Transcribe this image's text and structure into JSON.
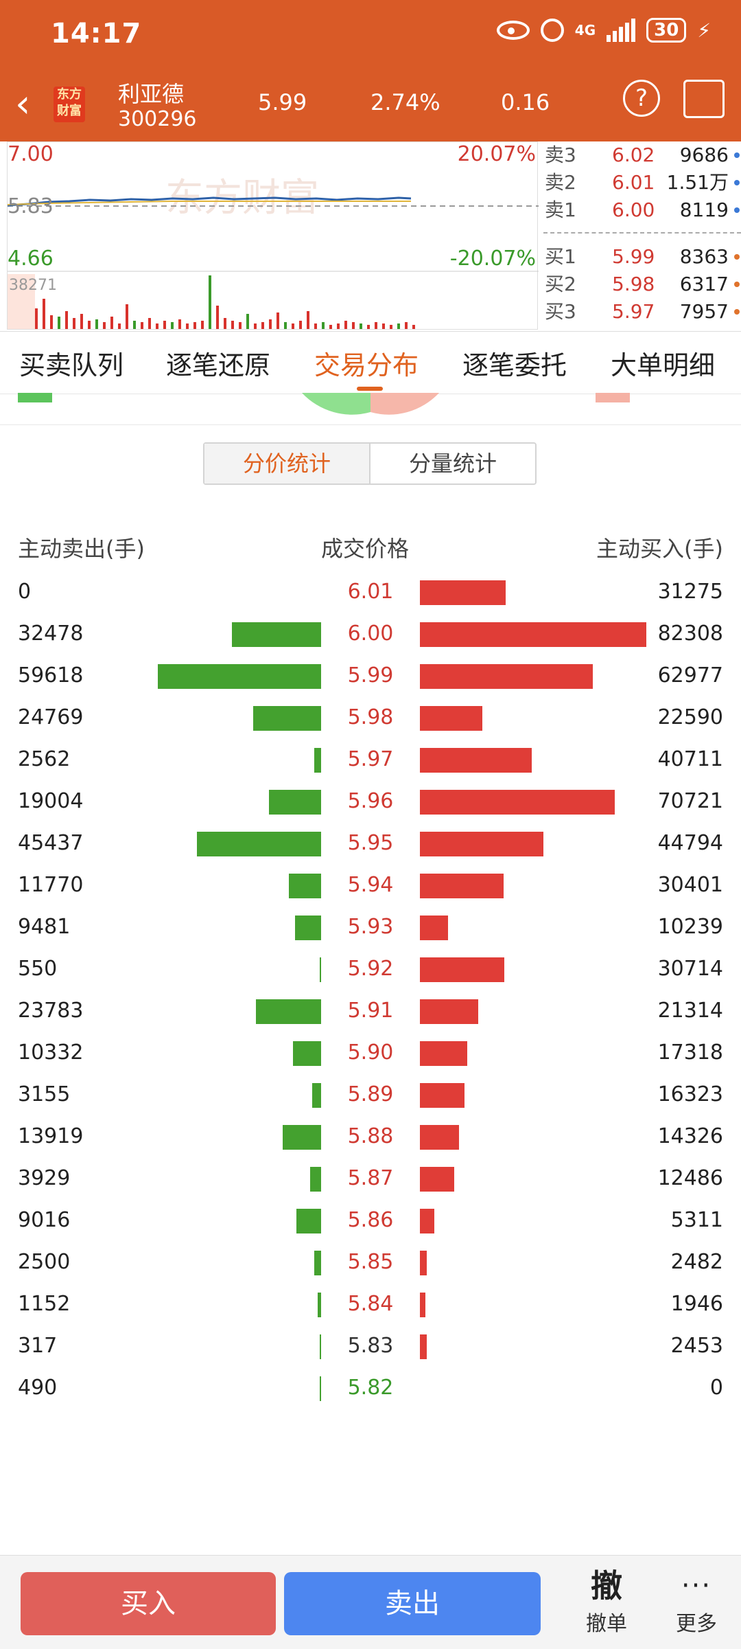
{
  "status": {
    "time": "14:17",
    "network": "4G",
    "battery": "30"
  },
  "stock": {
    "name": "利亚德",
    "code": "300296",
    "price": "5.99",
    "change_pct": "2.74%",
    "change": "0.16"
  },
  "mini_chart": {
    "high": "7.00",
    "high_pct": "20.07%",
    "mid": "5.83",
    "low": "4.66",
    "low_pct": "-20.07%",
    "vol_max": "38271",
    "watermark": "东方财富"
  },
  "orderbook": {
    "asks": [
      {
        "label": "卖3",
        "price": "6.02",
        "volume": "9686"
      },
      {
        "label": "卖2",
        "price": "6.01",
        "volume": "1.51万"
      },
      {
        "label": "卖1",
        "price": "6.00",
        "volume": "8119"
      }
    ],
    "bids": [
      {
        "label": "买1",
        "price": "5.99",
        "volume": "8363"
      },
      {
        "label": "买2",
        "price": "5.98",
        "volume": "6317"
      },
      {
        "label": "买3",
        "price": "5.97",
        "volume": "7957"
      }
    ]
  },
  "tabs": [
    "买卖队列",
    "逐笔还原",
    "交易分布",
    "逐笔委托",
    "大单明细"
  ],
  "active_tab": "交易分布",
  "segment": {
    "left": "分价统计",
    "right": "分量统计"
  },
  "table": {
    "col_sell": "主动卖出(手)",
    "col_price": "成交价格",
    "col_buy": "主动买入(手)",
    "rows": [
      {
        "sell": "0",
        "price": "6.01",
        "buy": "31275",
        "price_color": "#d03a32"
      },
      {
        "sell": "32478",
        "price": "6.00",
        "buy": "82308",
        "price_color": "#d03a32"
      },
      {
        "sell": "59618",
        "price": "5.99",
        "buy": "62977",
        "price_color": "#d03a32"
      },
      {
        "sell": "24769",
        "price": "5.98",
        "buy": "22590",
        "price_color": "#d03a32"
      },
      {
        "sell": "2562",
        "price": "5.97",
        "buy": "40711",
        "price_color": "#d03a32"
      },
      {
        "sell": "19004",
        "price": "5.96",
        "buy": "70721",
        "price_color": "#d03a32"
      },
      {
        "sell": "45437",
        "price": "5.95",
        "buy": "44794",
        "price_color": "#d03a32"
      },
      {
        "sell": "11770",
        "price": "5.94",
        "buy": "30401",
        "price_color": "#d03a32"
      },
      {
        "sell": "9481",
        "price": "5.93",
        "buy": "10239",
        "price_color": "#d03a32"
      },
      {
        "sell": "550",
        "price": "5.92",
        "buy": "30714",
        "price_color": "#d03a32"
      },
      {
        "sell": "23783",
        "price": "5.91",
        "buy": "21314",
        "price_color": "#d03a32"
      },
      {
        "sell": "10332",
        "price": "5.90",
        "buy": "17318",
        "price_color": "#d03a32"
      },
      {
        "sell": "3155",
        "price": "5.89",
        "buy": "16323",
        "price_color": "#d03a32"
      },
      {
        "sell": "13919",
        "price": "5.88",
        "buy": "14326",
        "price_color": "#d03a32"
      },
      {
        "sell": "3929",
        "price": "5.87",
        "buy": "12486",
        "price_color": "#d03a32"
      },
      {
        "sell": "9016",
        "price": "5.86",
        "buy": "5311",
        "price_color": "#d03a32"
      },
      {
        "sell": "2500",
        "price": "5.85",
        "buy": "2482",
        "price_color": "#d03a32"
      },
      {
        "sell": "1152",
        "price": "5.84",
        "buy": "1946",
        "price_color": "#d03a32"
      },
      {
        "sell": "317",
        "price": "5.83",
        "buy": "2453",
        "price_color": "#333333"
      },
      {
        "sell": "490",
        "price": "5.82",
        "buy": "0",
        "price_color": "#3a9a2a"
      }
    ]
  },
  "bottom": {
    "buy": "买入",
    "sell": "卖出",
    "cancel_icon": "撤",
    "cancel_label": "撤单",
    "more_label": "更多"
  },
  "colors": {
    "header": "#d95a27",
    "accent": "#e0621f",
    "up": "#e03d37",
    "down": "#44a12f",
    "sell_button": "#4d86f0"
  }
}
